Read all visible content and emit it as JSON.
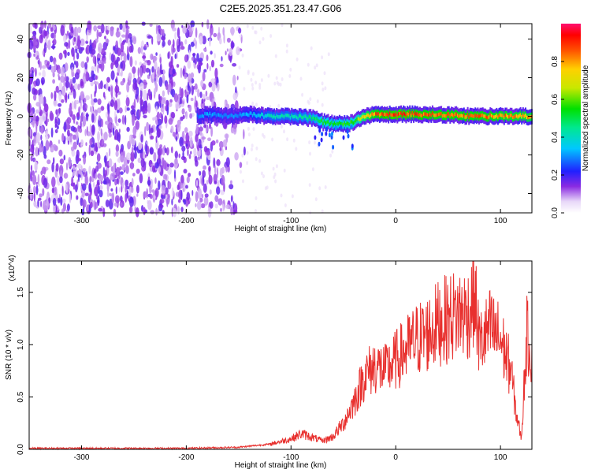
{
  "title": "C2E5.2025.351.23.47.G06",
  "colorbar": {
    "label": "Normalized spectral amplitude",
    "ticks": [
      "0.0",
      "0.2",
      "0.4",
      "0.6",
      "0.8"
    ],
    "tick_values": [
      0.0,
      0.2,
      0.4,
      0.6,
      0.8
    ],
    "range": [
      0,
      1
    ]
  },
  "chart_data": [
    {
      "type": "heatmap",
      "xlabel": "Height of straight line (km)",
      "ylabel": "Frequency (Hz)",
      "xlim": [
        -350,
        130
      ],
      "ylim": [
        -50,
        48
      ],
      "xticks": [
        -300,
        -200,
        -100,
        0,
        100
      ],
      "xtick_labels": [
        "-300",
        "-200",
        "-100",
        "0",
        "100"
      ],
      "yticks": [
        -40,
        -20,
        0,
        20,
        40
      ],
      "ytick_labels": [
        "-40",
        "-20",
        "0",
        "20",
        "40"
      ],
      "ridge": {
        "x": [
          -190,
          -180,
          -160,
          -140,
          -120,
          -100,
          -80,
          -70,
          -60,
          -50,
          -40,
          -30,
          -20,
          0,
          40,
          80,
          130
        ],
        "freq": [
          0,
          1,
          0,
          1,
          0,
          0,
          -1,
          -3,
          -4,
          -4,
          -3,
          0,
          1,
          1,
          1,
          0,
          0
        ],
        "amplitude": [
          0.3,
          0.35,
          0.3,
          0.35,
          0.45,
          0.45,
          0.5,
          0.6,
          0.55,
          0.6,
          0.6,
          0.8,
          0.9,
          0.95,
          0.9,
          0.9,
          0.85
        ]
      },
      "noise_region_x": [
        -350,
        -150
      ]
    },
    {
      "type": "line",
      "xlabel": "Height of straight line (km)",
      "ylabel": "SNR (10 * v/v)",
      "y_multiplier": "(x10^4)",
      "xlim": [
        -350,
        130
      ],
      "ylim": [
        0,
        1.8
      ],
      "xticks": [
        -300,
        -200,
        -100,
        0,
        100
      ],
      "xtick_labels": [
        "-300",
        "-200",
        "-100",
        "0",
        "100"
      ],
      "yticks": [
        0.0,
        0.5,
        1.0,
        1.5
      ],
      "ytick_labels": [
        "0.0",
        "0.5",
        "1.0",
        "1.5"
      ],
      "series": [
        {
          "color": "#e8302e",
          "x": [
            -350,
            -300,
            -200,
            -150,
            -120,
            -100,
            -90,
            -70,
            -60,
            -50,
            -40,
            -30,
            -20,
            -10,
            0,
            10,
            20,
            30,
            40,
            50,
            60,
            70,
            75,
            80,
            90,
            100,
            110,
            115,
            120,
            125,
            130
          ],
          "y": [
            0.01,
            0.01,
            0.01,
            0.02,
            0.05,
            0.1,
            0.15,
            0.08,
            0.12,
            0.25,
            0.45,
            0.7,
            0.8,
            0.75,
            0.85,
            0.95,
            1.05,
            1.1,
            1.2,
            1.25,
            1.3,
            1.3,
            1.5,
            1.0,
            1.15,
            1.05,
            0.75,
            0.35,
            0.1,
            1.1,
            0.9
          ]
        }
      ]
    }
  ]
}
